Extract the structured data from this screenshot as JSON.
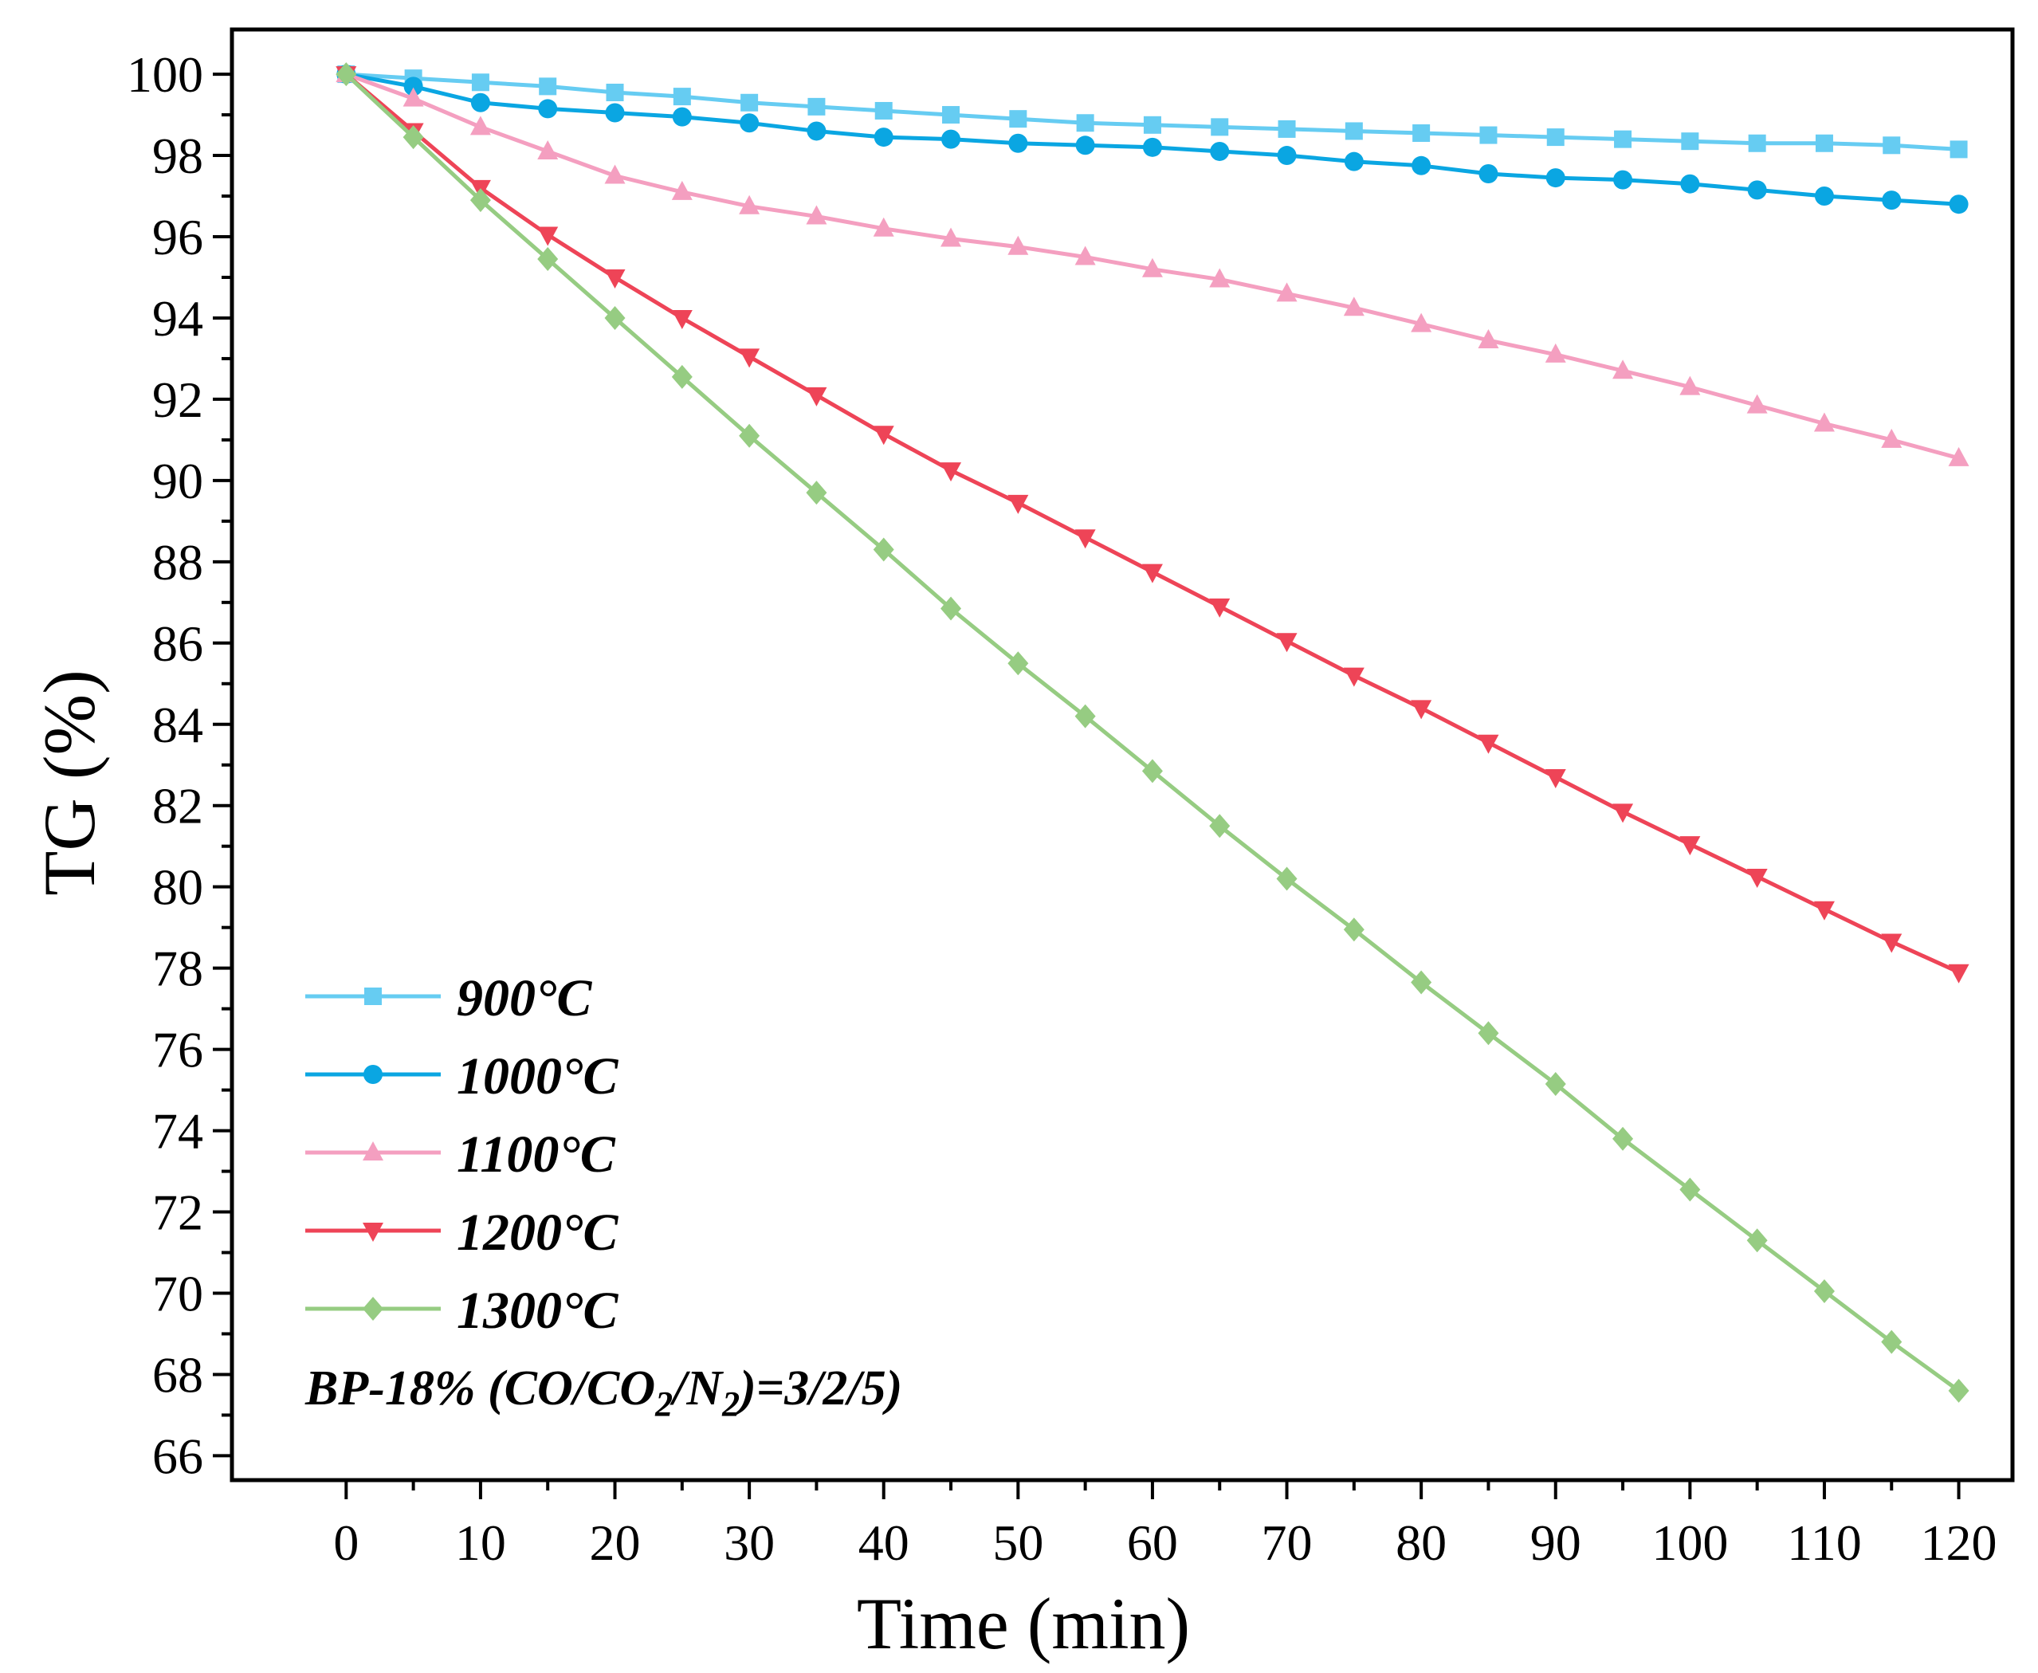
{
  "chart_data": {
    "type": "line",
    "title": "",
    "xlabel": "Time (min)",
    "ylabel": "TG (%)",
    "xlim": [
      -8.5,
      124
    ],
    "ylim": [
      65.4,
      101.1
    ],
    "xticks": [
      0,
      10,
      20,
      30,
      40,
      50,
      60,
      70,
      80,
      90,
      100,
      110,
      120
    ],
    "yticks": [
      66,
      68,
      70,
      72,
      74,
      76,
      78,
      80,
      82,
      84,
      86,
      88,
      90,
      92,
      94,
      96,
      98,
      100
    ],
    "grid": false,
    "legend_position": "bottom-left",
    "x": [
      0,
      5,
      10,
      15,
      20,
      25,
      30,
      35,
      40,
      45,
      50,
      55,
      60,
      65,
      70,
      75,
      80,
      85,
      90,
      95,
      100,
      105,
      110,
      115,
      120
    ],
    "series": [
      {
        "name": "900°C",
        "color": "#66ccf2",
        "marker": "square",
        "values": [
          100.0,
          99.9,
          99.8,
          99.7,
          99.55,
          99.45,
          99.3,
          99.2,
          99.1,
          99.0,
          98.9,
          98.8,
          98.75,
          98.7,
          98.65,
          98.6,
          98.55,
          98.5,
          98.45,
          98.4,
          98.35,
          98.3,
          98.3,
          98.25,
          98.15
        ]
      },
      {
        "name": "1000°C",
        "color": "#0aa6e2",
        "marker": "circle",
        "values": [
          100.0,
          99.7,
          99.3,
          99.15,
          99.05,
          98.95,
          98.8,
          98.6,
          98.45,
          98.4,
          98.3,
          98.25,
          98.2,
          98.1,
          98.0,
          97.85,
          97.75,
          97.55,
          97.45,
          97.4,
          97.3,
          97.15,
          97.0,
          96.9,
          96.8
        ]
      },
      {
        "name": "1100°C",
        "color": "#f49fc0",
        "marker": "triangle-up",
        "values": [
          100.0,
          99.4,
          98.7,
          98.1,
          97.5,
          97.1,
          96.75,
          96.5,
          96.2,
          95.95,
          95.75,
          95.5,
          95.2,
          94.95,
          94.6,
          94.25,
          93.85,
          93.45,
          93.1,
          92.7,
          92.3,
          91.85,
          91.4,
          91.0,
          90.55
        ]
      },
      {
        "name": "1200°C",
        "color": "#ee4457",
        "marker": "triangle-down",
        "values": [
          100.0,
          98.6,
          97.2,
          96.05,
          95.0,
          94.0,
          93.05,
          92.1,
          91.15,
          90.25,
          89.45,
          88.6,
          87.75,
          86.9,
          86.05,
          85.2,
          84.4,
          83.55,
          82.7,
          81.85,
          81.05,
          80.25,
          79.45,
          78.65,
          77.9
        ]
      },
      {
        "name": "1300°C",
        "color": "#96cc82",
        "marker": "diamond",
        "values": [
          100.0,
          98.45,
          96.9,
          95.45,
          94.0,
          92.55,
          91.1,
          89.7,
          88.3,
          86.85,
          85.5,
          84.2,
          82.85,
          81.5,
          80.2,
          78.95,
          77.65,
          76.4,
          75.15,
          73.8,
          72.55,
          71.3,
          70.05,
          68.8,
          67.6
        ]
      }
    ],
    "annotation": {
      "prefix": "BP-18% (CO/CO",
      "sub1": "2",
      "mid": "/N",
      "sub2": "2",
      "suffix": ")=3/2/5)"
    }
  }
}
